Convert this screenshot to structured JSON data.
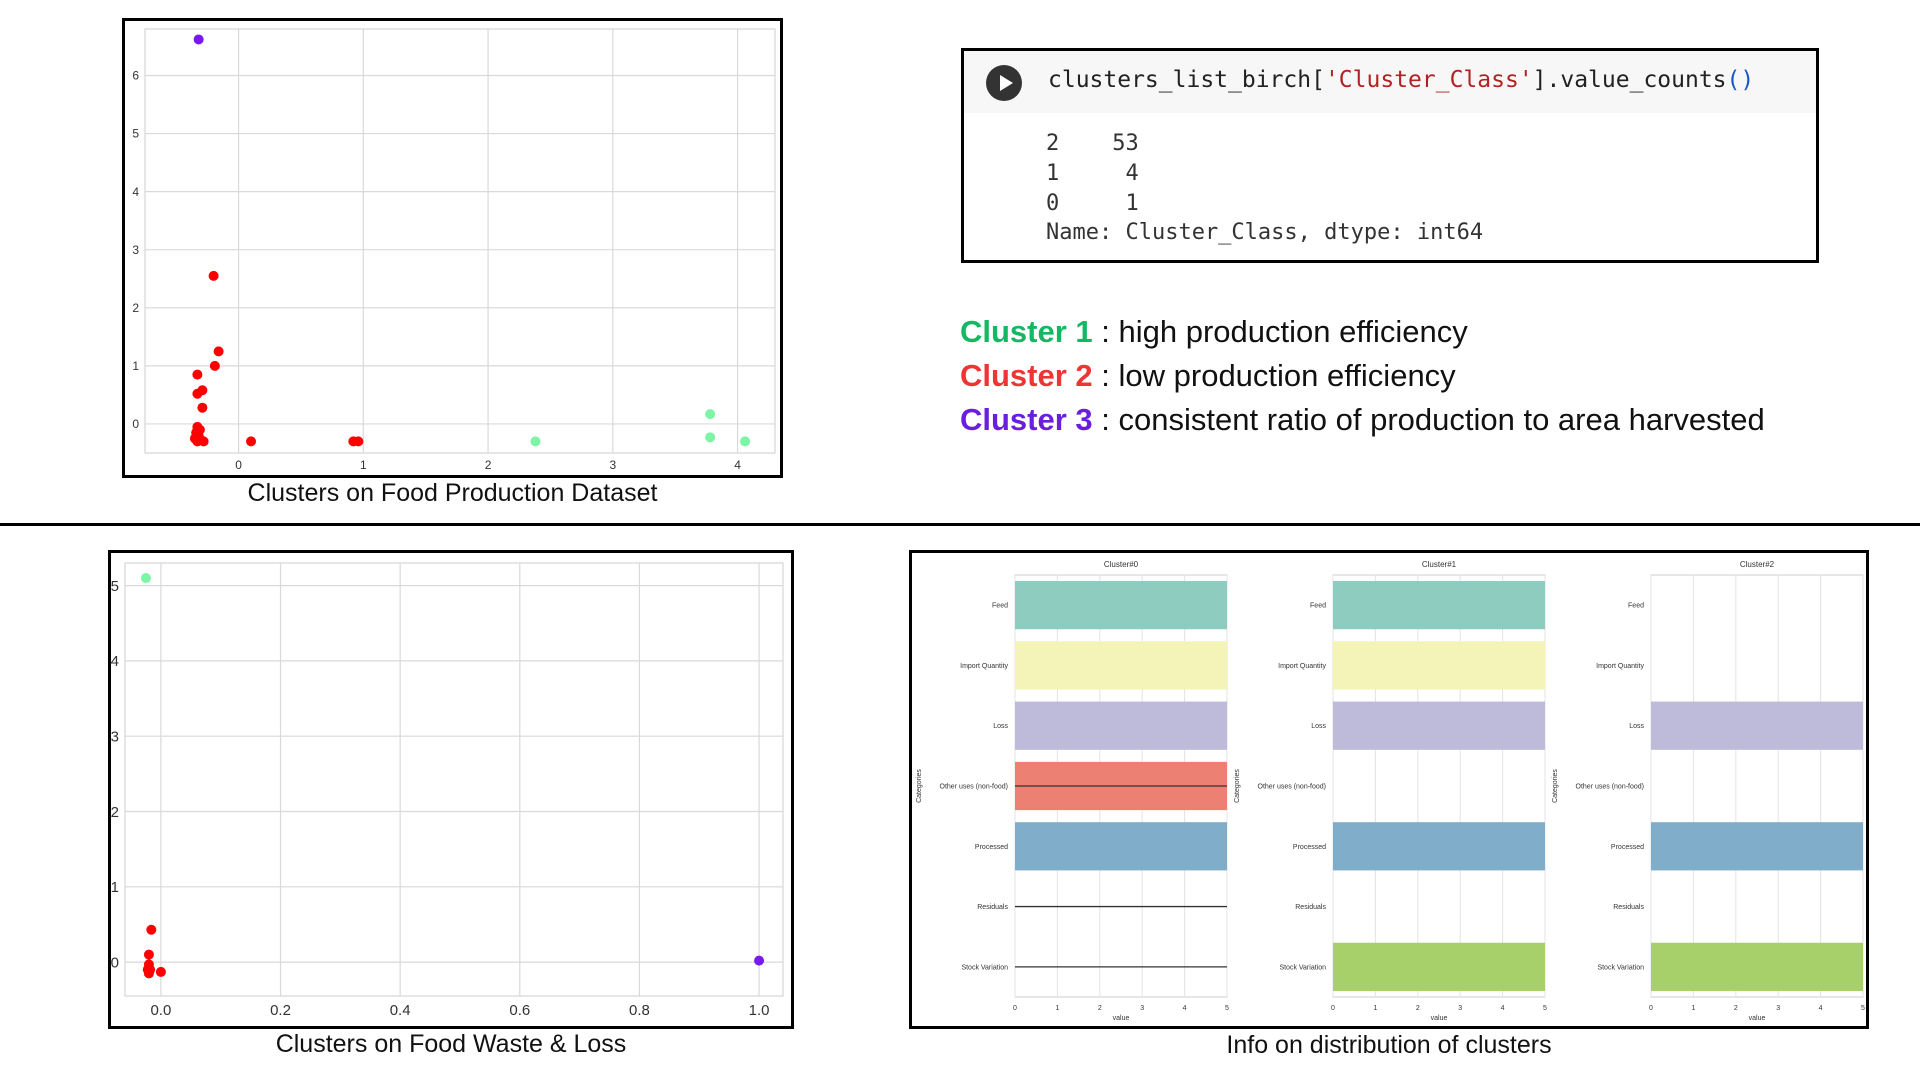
{
  "chart_data": [
    {
      "type": "scatter",
      "x_ticks": [
        "0",
        "1",
        "2",
        "3",
        "4"
      ],
      "y_ticks": [
        "0",
        "1",
        "2",
        "3",
        "4",
        "5",
        "6"
      ],
      "xlim": [
        -0.75,
        4.3
      ],
      "ylim": [
        -0.5,
        6.8
      ],
      "grid": true,
      "series": [
        {
          "color": "#ff0000",
          "points": [
            [
              -0.2,
              2.55
            ],
            [
              -0.16,
              1.25
            ],
            [
              -0.19,
              1.0
            ],
            [
              -0.33,
              0.85
            ],
            [
              -0.29,
              0.58
            ],
            [
              -0.33,
              0.52
            ],
            [
              -0.29,
              0.28
            ],
            [
              -0.33,
              -0.05
            ],
            [
              -0.31,
              -0.1
            ],
            [
              -0.34,
              -0.15
            ],
            [
              -0.32,
              -0.2
            ],
            [
              -0.35,
              -0.25
            ],
            [
              -0.3,
              -0.28
            ],
            [
              -0.33,
              -0.3
            ],
            [
              -0.28,
              -0.3
            ],
            [
              0.1,
              -0.3
            ],
            [
              0.92,
              -0.3
            ],
            [
              0.96,
              -0.3
            ]
          ]
        },
        {
          "color": "#7cf5a4",
          "points": [
            [
              2.38,
              -0.3
            ],
            [
              3.78,
              0.17
            ],
            [
              3.78,
              -0.23
            ],
            [
              4.06,
              -0.3
            ]
          ]
        },
        {
          "color": "#7a18f0",
          "points": [
            [
              -0.32,
              6.62
            ]
          ]
        }
      ]
    },
    {
      "type": "scatter",
      "x_ticks": [
        "0.0",
        "0.2",
        "0.4",
        "0.6",
        "0.8",
        "1.0"
      ],
      "y_ticks": [
        "0",
        "1",
        "2",
        "3",
        "4",
        "5"
      ],
      "xlim": [
        -0.06,
        1.04
      ],
      "ylim": [
        -0.45,
        5.3
      ],
      "grid": true,
      "series": [
        {
          "color": "#ff0000",
          "points": [
            [
              -0.016,
              0.43
            ],
            [
              -0.02,
              0.1
            ],
            [
              -0.02,
              -0.03
            ],
            [
              -0.022,
              -0.1
            ],
            [
              -0.02,
              -0.15
            ],
            [
              -0.018,
              -0.1
            ],
            [
              0.0,
              -0.13
            ]
          ]
        },
        {
          "color": "#7cf5a4",
          "points": [
            [
              -0.025,
              5.1
            ]
          ]
        },
        {
          "color": "#7a18f0",
          "points": [
            [
              1.0,
              0.02
            ]
          ]
        }
      ]
    },
    {
      "type": "bar",
      "orientation": "horizontal",
      "ylabel": "Categories",
      "xlabel": "value",
      "x_ticks": [
        "0",
        "1",
        "2",
        "3",
        "4",
        "5"
      ],
      "xlim": [
        0,
        5
      ],
      "categories": [
        "Feed",
        "Import Quantity",
        "Loss",
        "Other uses (non-food)",
        "Processed",
        "Residuals",
        "Stock Variation"
      ],
      "category_colors": [
        "#8dccbe",
        "#f4f4b8",
        "#bebad9",
        "#ec8072",
        "#80adc9",
        "#f5b26b",
        "#a8d06a"
      ],
      "panels": [
        {
          "title": "Cluster#0",
          "values": [
            5,
            5,
            5,
            5,
            5,
            0,
            0
          ],
          "error_bars": [
            false,
            false,
            false,
            true,
            false,
            true,
            true
          ]
        },
        {
          "title": "Cluster#1",
          "values": [
            5,
            5,
            5,
            0,
            5,
            0,
            5
          ],
          "error_bars": [
            false,
            false,
            false,
            false,
            false,
            false,
            false
          ]
        },
        {
          "title": "Cluster#2",
          "values": [
            0,
            0,
            5,
            0,
            5,
            0,
            5
          ],
          "error_bars": [
            false,
            false,
            false,
            false,
            false,
            false,
            false
          ]
        }
      ]
    }
  ],
  "captions": {
    "production": "Clusters on Food Production Dataset",
    "waste": "Clusters on Food Waste & Loss",
    "distribution": "Info on distribution of clusters"
  },
  "code_cell": {
    "code_prefix": "clusters_list_birch[",
    "code_string": "'Cluster_Class'",
    "code_mid": "].value_counts",
    "code_parens": "()",
    "output_lines": [
      "2    53",
      "1     4",
      "0     1",
      "Name: Cluster_Class, dtype: int64"
    ]
  },
  "legend": [
    {
      "label": "Cluster 1",
      "text": " : high production efficiency",
      "color": "#13b863"
    },
    {
      "label": "Cluster 2",
      "text": " : low production efficiency",
      "color": "#ef3434"
    },
    {
      "label": "Cluster 3",
      "text": " : consistent ratio of production to area harvested",
      "color": "#6a1fe0"
    }
  ]
}
